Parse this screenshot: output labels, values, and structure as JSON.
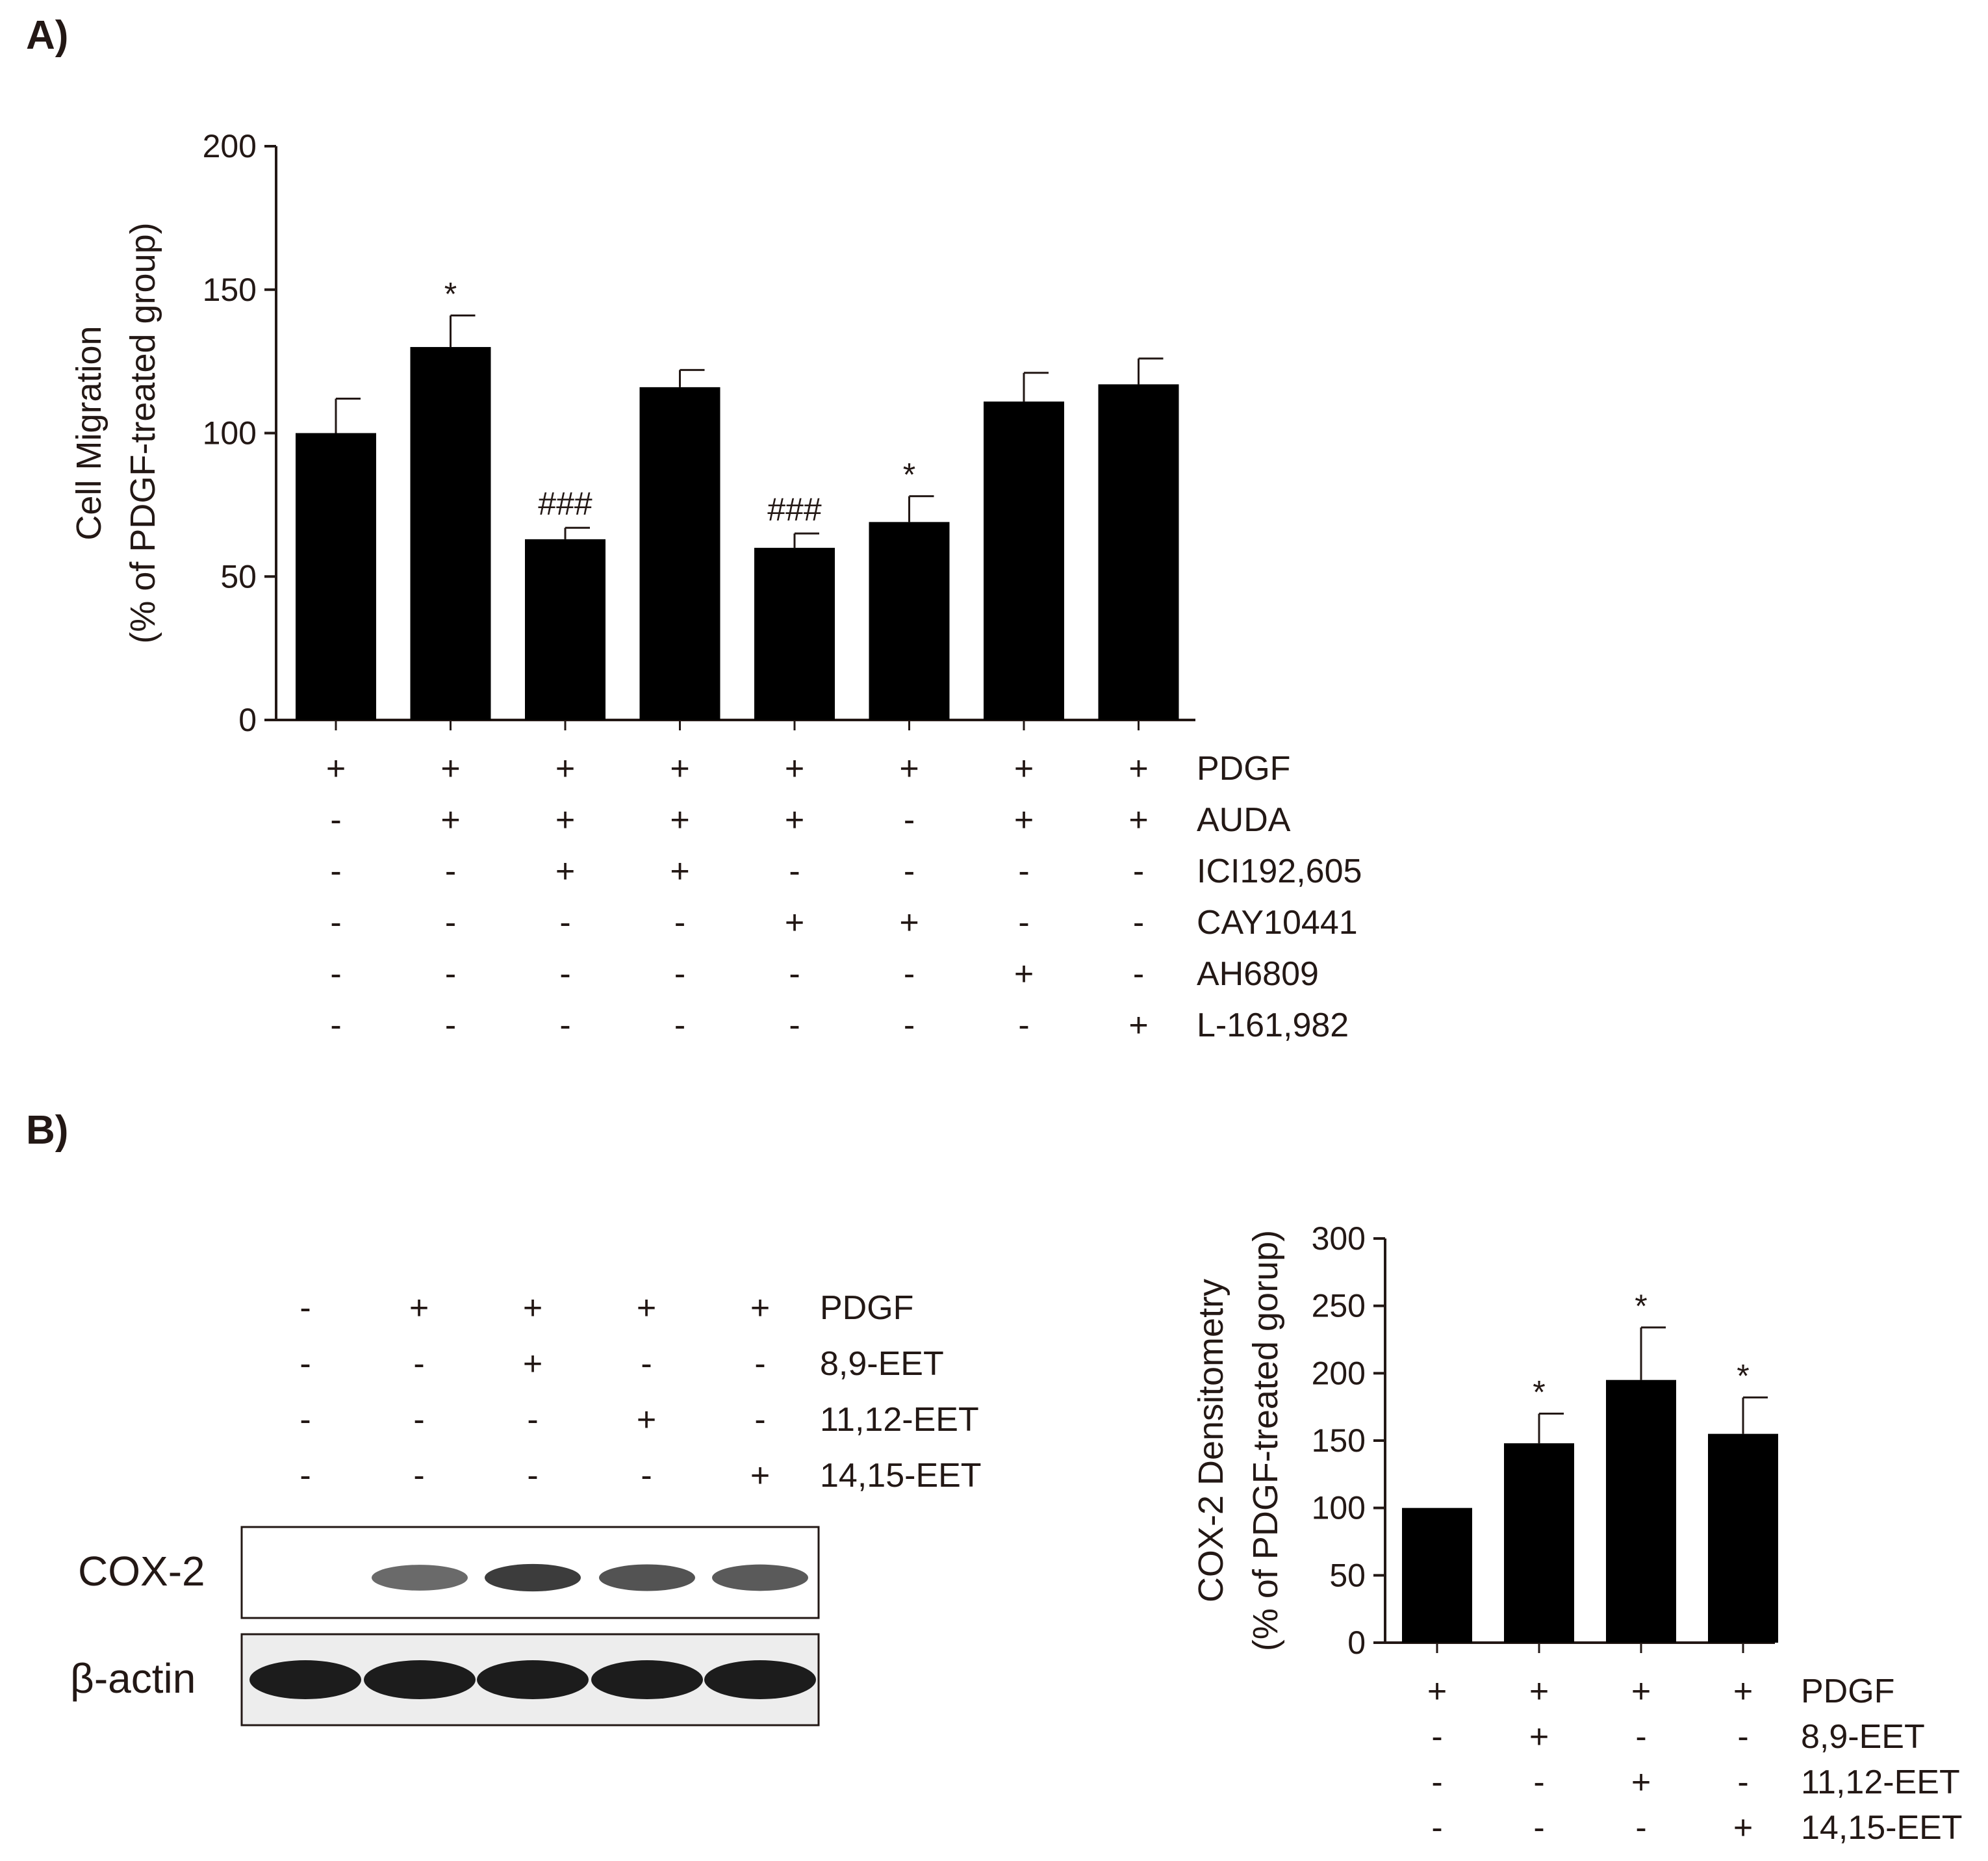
{
  "panel_a": {
    "label": "A)",
    "conditions": {
      "rows": [
        {
          "name": "PDGF",
          "marks": [
            "+",
            "+",
            "+",
            "+",
            "+",
            "+",
            "+",
            "+"
          ]
        },
        {
          "name": "AUDA",
          "marks": [
            "-",
            "+",
            "+",
            "+",
            "+",
            "-",
            "+",
            "+"
          ]
        },
        {
          "name": "ICI192,605",
          "marks": [
            "-",
            "-",
            "+",
            "+",
            "-",
            "-",
            "-",
            "-"
          ]
        },
        {
          "name": "CAY10441",
          "marks": [
            "-",
            "-",
            "-",
            "-",
            "+",
            "+",
            "-",
            "-"
          ]
        },
        {
          "name": "AH6809",
          "marks": [
            "-",
            "-",
            "-",
            "-",
            "-",
            "-",
            "+",
            "-"
          ]
        },
        {
          "name": "L-161,982",
          "marks": [
            "-",
            "-",
            "-",
            "-",
            "-",
            "-",
            "-",
            "+"
          ]
        }
      ]
    }
  },
  "panel_b": {
    "label": "B)",
    "blot": {
      "conditions": [
        {
          "name": "PDGF",
          "marks": [
            "-",
            "+",
            "+",
            "+",
            "+"
          ]
        },
        {
          "name": "8,9-EET",
          "marks": [
            "-",
            "-",
            "+",
            "-",
            "-"
          ]
        },
        {
          "name": "11,12-EET",
          "marks": [
            "-",
            "-",
            "-",
            "+",
            "-"
          ]
        },
        {
          "name": "14,15-EET",
          "marks": [
            "-",
            "-",
            "-",
            "-",
            "+"
          ]
        }
      ],
      "row_labels": [
        "COX-2",
        "β-actin"
      ],
      "cox2_band_intensity": [
        0.0,
        0.65,
        0.85,
        0.75,
        0.72
      ],
      "actin_band_intensity": [
        0.95,
        0.95,
        0.95,
        0.95,
        0.95
      ]
    },
    "conditions": {
      "rows": [
        {
          "name": "PDGF",
          "marks": [
            "+",
            "+",
            "+",
            "+"
          ]
        },
        {
          "name": "8,9-EET",
          "marks": [
            "-",
            "+",
            "-",
            "-"
          ]
        },
        {
          "name": "11,12-EET",
          "marks": [
            "-",
            "-",
            "+",
            "-"
          ]
        },
        {
          "name": "14,15-EET",
          "marks": [
            "-",
            "-",
            "-",
            "+"
          ]
        }
      ]
    }
  },
  "chart_data": [
    {
      "type": "bar",
      "ylabel": "Cell Migration",
      "ylabel2": "(% of PDGF-treated group)",
      "ylim": [
        0,
        200
      ],
      "yticks": [
        0,
        50,
        100,
        150,
        200
      ],
      "categories": [
        "1",
        "2",
        "3",
        "4",
        "5",
        "6",
        "7",
        "8"
      ],
      "values": [
        100,
        130,
        63,
        116,
        60,
        69,
        111,
        117
      ],
      "errors": [
        12,
        11,
        4,
        6,
        5,
        9,
        10,
        9
      ],
      "annotations": [
        "",
        "*",
        "###",
        "",
        "###",
        "*",
        "",
        ""
      ],
      "color": "#000000"
    },
    {
      "type": "bar",
      "ylabel": "COX-2 Densitometry",
      "ylabel2": "(% of PDGF-treated gorup)",
      "ylim": [
        0,
        300
      ],
      "yticks": [
        0,
        50,
        100,
        150,
        200,
        250,
        300
      ],
      "categories": [
        "1",
        "2",
        "3",
        "4"
      ],
      "values": [
        100,
        148,
        195,
        155
      ],
      "errors": [
        0,
        22,
        39,
        27
      ],
      "annotations": [
        "",
        "*",
        "*",
        "*"
      ],
      "color": "#000000"
    }
  ]
}
